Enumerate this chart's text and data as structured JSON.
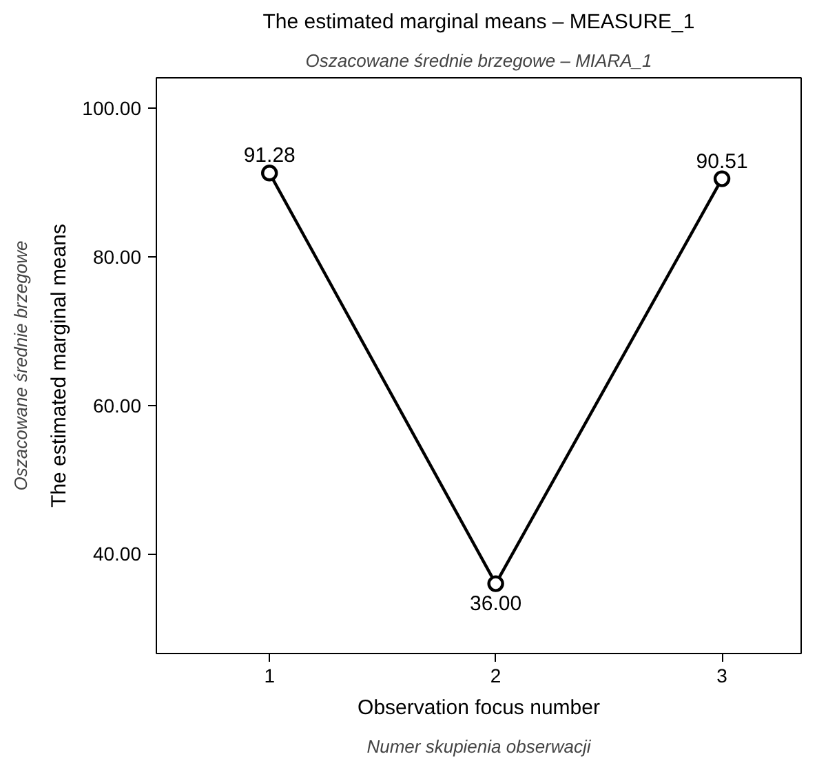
{
  "chart_data": {
    "type": "line",
    "title": "The estimated marginal means – MEASURE_1",
    "subtitle": "Oszacowane średnie brzegowe – MIARA_1",
    "xlabel": "Observation focus number\nNumer skupienia obserwacji",
    "ylabel": "The estimated marginal means\nOszacowane średnie brzegowe",
    "categories": [
      "1",
      "2",
      "3"
    ],
    "series": [
      {
        "color": "#000000",
        "values": [
          91.28,
          36.0,
          90.51
        ],
        "value_labels": [
          "91.28",
          "36.00",
          "90.51"
        ]
      }
    ],
    "ylim": [
      26.6,
      104.1
    ],
    "yticks": [
      {
        "value": 40,
        "label": "40.00"
      },
      {
        "value": 60,
        "label": "60.00"
      },
      {
        "value": 80,
        "label": "80.00"
      },
      {
        "value": 100,
        "label": "100.00"
      }
    ],
    "grid": false,
    "marker": "circle",
    "line_style": "solid"
  }
}
